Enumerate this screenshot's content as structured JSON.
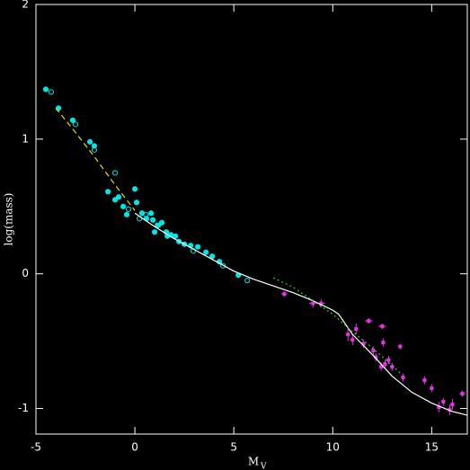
{
  "chart_data": {
    "type": "scatter",
    "xlabel": "M",
    "xlabel_sub": "V",
    "ylabel": "log(mass)",
    "xlim": [
      -5,
      16.8
    ],
    "ylim": [
      -1.19,
      2
    ],
    "xticks": [
      -5,
      0,
      5,
      10,
      15
    ],
    "yticks": [
      -1,
      0,
      1,
      2
    ],
    "axis_color": "#ffffff",
    "series": [
      {
        "kind": "points",
        "marker": "filled",
        "color": "#00e5e5",
        "x": [
          -4.5,
          -3.86,
          -3.14,
          -2.27,
          -2.05,
          -1.36,
          -1.0,
          -0.82,
          -0.59,
          -0.41,
          0,
          0.09,
          0.36,
          0.59,
          0.82,
          0.91,
          1.18,
          1.36,
          1.59,
          1.82,
          2.05,
          2.23,
          2.5,
          2.82,
          3.18,
          3.59,
          3.91,
          4.27,
          5.23,
          1.0,
          1.64
        ],
        "values": [
          1.37,
          1.23,
          1.14,
          0.98,
          0.95,
          0.61,
          0.55,
          0.57,
          0.5,
          0.44,
          0.63,
          0.53,
          0.45,
          0.41,
          0.45,
          0.4,
          0.36,
          0.38,
          0.31,
          0.29,
          0.28,
          0.24,
          0.22,
          0.21,
          0.2,
          0.16,
          0.13,
          0.09,
          -0.01,
          0.31,
          0.28
        ]
      },
      {
        "kind": "points",
        "marker": "open",
        "color": "#00e5e5",
        "x": [
          -4.23,
          -3.0,
          -2.05,
          -1.0,
          -0.32,
          0.23,
          1.14,
          2.95,
          4.45,
          5.68,
          0.55
        ],
        "values": [
          1.35,
          1.11,
          0.92,
          0.75,
          0.48,
          0.41,
          0.36,
          0.17,
          0.06,
          -0.05,
          0.44
        ]
      },
      {
        "kind": "points",
        "marker": "filled-square",
        "color": "#e533e5",
        "x": [
          7.55,
          9.0,
          9.41,
          10.77,
          11.18,
          11.0,
          11.55,
          11.82,
          12.5,
          12.55,
          12.05,
          12.18,
          12.45,
          12.64,
          12.82,
          13.0,
          13.41,
          13.55,
          14.64,
          15.0,
          15.36,
          15.59,
          15.91,
          16.05,
          16.55
        ],
        "values": [
          -0.15,
          -0.22,
          -0.22,
          -0.45,
          -0.41,
          -0.49,
          -0.52,
          -0.35,
          -0.39,
          -0.51,
          -0.57,
          -0.62,
          -0.69,
          -0.67,
          -0.64,
          -0.69,
          -0.54,
          -0.77,
          -0.79,
          -0.85,
          -0.99,
          -0.95,
          -1.01,
          -0.97,
          -0.89
        ],
        "xerr": [
          0.15,
          0.2,
          0.2,
          0.1,
          0.1,
          0.1,
          0.1,
          0.2,
          0.2,
          0.1,
          0.1,
          0.1,
          0.1,
          0.1,
          0.1,
          0.1,
          0.1,
          0.1,
          0.1,
          0.1,
          0.1,
          0.1,
          0.1,
          0.1,
          0.15
        ],
        "yerr": [
          0.02,
          0.03,
          0.03,
          0.05,
          0.04,
          0.04,
          0.03,
          0.02,
          0.02,
          0.03,
          0.03,
          0.03,
          0.03,
          0.03,
          0.03,
          0.03,
          0.02,
          0.03,
          0.03,
          0.03,
          0.04,
          0.03,
          0.04,
          0.04,
          0.02
        ]
      },
      {
        "kind": "line",
        "dash": "dashed",
        "color": "#e5e500",
        "x": [
          -4,
          -3,
          -2,
          -1,
          0
        ],
        "values": [
          1.23,
          1.05,
          0.86,
          0.66,
          0.47
        ]
      },
      {
        "kind": "line",
        "dash": "solid",
        "color": "#ffffff",
        "x": [
          0,
          1,
          2,
          3,
          4,
          5,
          6,
          7,
          8,
          9,
          10,
          10.3,
          11,
          12,
          13,
          14,
          15,
          16,
          16.8
        ],
        "values": [
          0.45,
          0.35,
          0.26,
          0.18,
          0.1,
          0.02,
          -0.04,
          -0.09,
          -0.14,
          -0.2,
          -0.27,
          -0.3,
          -0.45,
          -0.6,
          -0.76,
          -0.88,
          -0.96,
          -1.02,
          -1.05
        ]
      },
      {
        "kind": "line",
        "dash": "dotted",
        "color": "#33cc33",
        "x": [
          7,
          8,
          9,
          10,
          11,
          12,
          13,
          13.5
        ],
        "values": [
          -0.03,
          -0.1,
          -0.2,
          -0.3,
          -0.43,
          -0.55,
          -0.68,
          -0.75
        ]
      }
    ]
  }
}
